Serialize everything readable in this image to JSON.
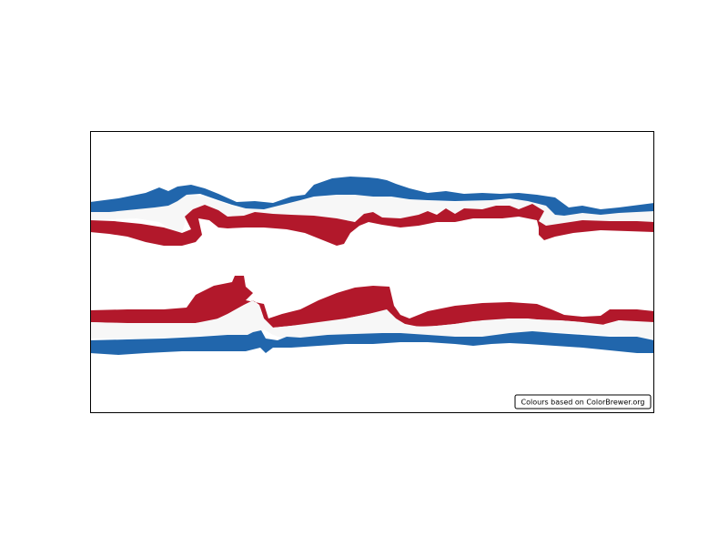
{
  "map": {
    "credit_text": "Colours based on ColorBrewer.org",
    "palette": {
      "red": "#b2182b",
      "blue": "#2166ac",
      "light": "#f7f7f7"
    },
    "bands": [
      {
        "name": "northern-blue-band",
        "color": "blue"
      },
      {
        "name": "northern-light-band",
        "color": "light"
      },
      {
        "name": "northern-red-band",
        "color": "red"
      },
      {
        "name": "southern-red-band",
        "color": "red"
      },
      {
        "name": "southern-light-band",
        "color": "light"
      },
      {
        "name": "southern-blue-band",
        "color": "blue"
      }
    ]
  }
}
